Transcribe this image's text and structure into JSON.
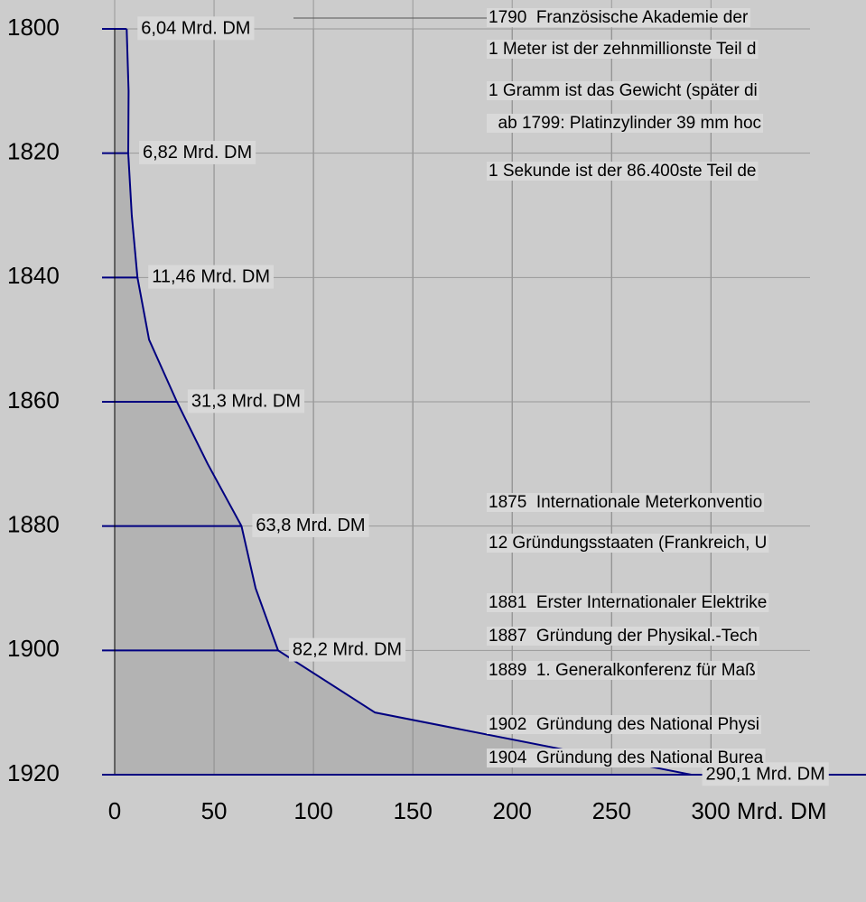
{
  "chart_data": {
    "type": "area",
    "orientation": "horizontal",
    "x": [
      1800,
      1810,
      1820,
      1830,
      1840,
      1850,
      1860,
      1870,
      1880,
      1890,
      1900,
      1910,
      1920
    ],
    "values": [
      6.04,
      7,
      6.82,
      8.6,
      11.46,
      17.3,
      31.3,
      46.8,
      63.8,
      70.9,
      82.2,
      131,
      290.1
    ],
    "value_labels": [
      "6,04 Mrd. DM",
      null,
      "6,82 Mrd. DM",
      null,
      "11,46 Mrd. DM",
      null,
      "31,3 Mrd. DM",
      null,
      "63,8 Mrd. DM",
      null,
      "82,2 Mrd. DM",
      null,
      "290,1 Mrd. DM"
    ],
    "xlim": [
      1800,
      1920
    ],
    "xticks": [
      1800,
      1820,
      1840,
      1860,
      1880,
      1900,
      1920
    ],
    "ylim": [
      0,
      378
    ],
    "yticks": [
      0,
      50,
      100,
      150,
      200,
      250,
      {
        "value": 300,
        "label": "300 Mrd. DM"
      }
    ],
    "color": "#000080",
    "fill": "#b3b3b3",
    "grid": true,
    "annotations": [
      "1790  Französische Akademie der",
      "1 Meter ist der zehnmillionste Teil d",
      "1 Gramm ist das Gewicht (später di",
      "  ab 1799: Platinzylinder 39 mm hoc",
      "1 Sekunde ist der 86.400ste Teil de",
      "1875  Internationale Meterkonventio",
      "12 Gründungsstaaten (Frankreich, U",
      "1881  Erster Internationaler Elektrike",
      "1887  Gründung der Physikal.-Tech",
      "1889  1. Generalkonferenz für Maß",
      "1902  Gründung des National Physi",
      "1904  Gründung des National Burea"
    ]
  }
}
